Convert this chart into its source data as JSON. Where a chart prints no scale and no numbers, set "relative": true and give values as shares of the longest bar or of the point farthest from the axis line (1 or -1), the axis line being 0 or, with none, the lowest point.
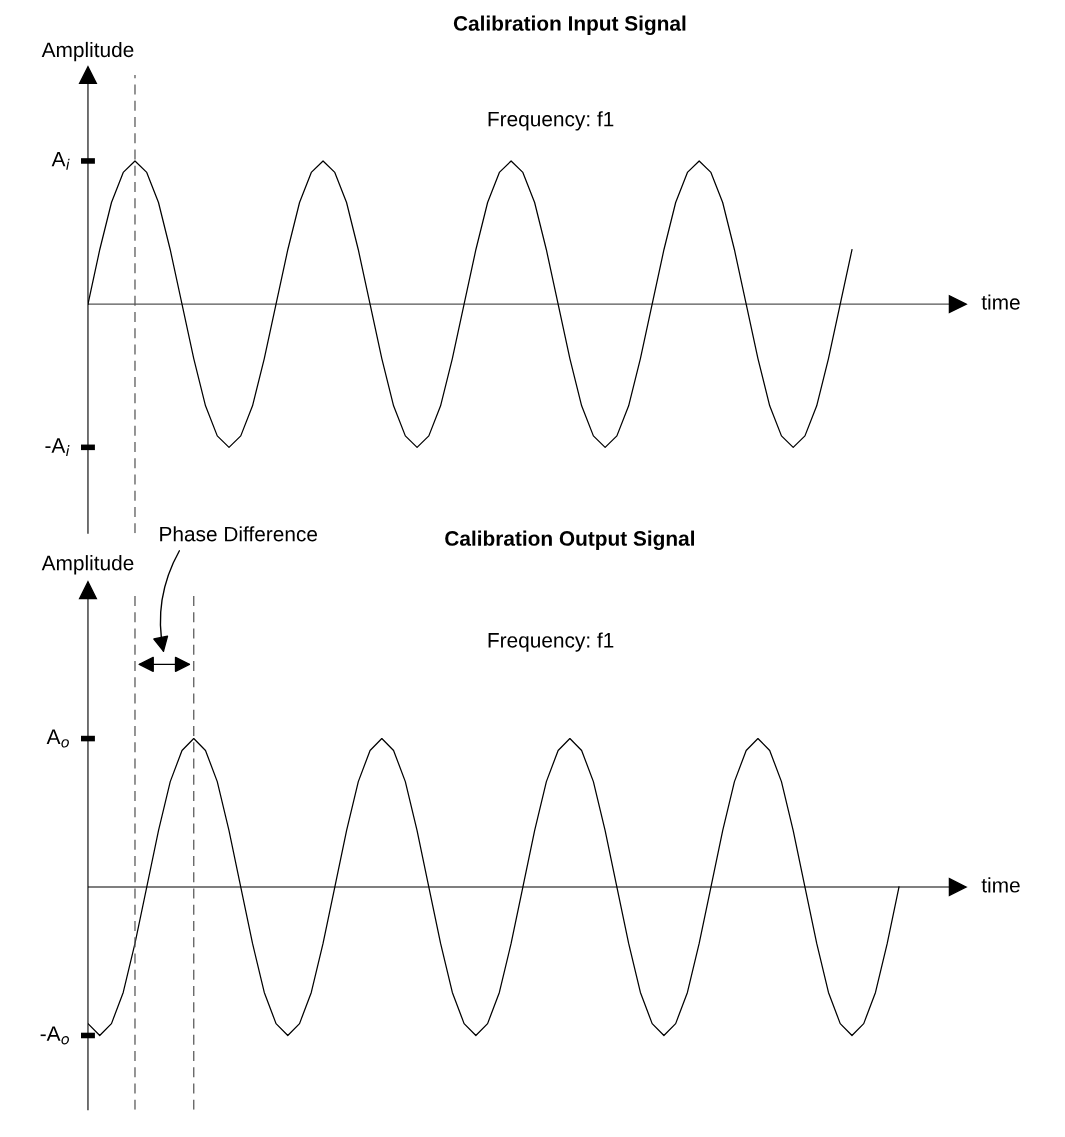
{
  "chart_data": [
    {
      "type": "line",
      "title": "Calibration Input Signal",
      "ylabel": "Amplitude",
      "xlabel": "time",
      "annotations": [
        "Frequency: f1",
        "A$_{i}$",
        "-A$_{i}$"
      ],
      "categories": [
        null,
        null,
        null,
        null,
        null,
        null,
        null,
        null,
        null,
        null,
        null,
        null,
        null,
        null,
        null,
        null,
        null,
        null,
        null,
        null,
        null,
        null,
        null,
        null,
        null,
        null,
        null,
        null,
        null,
        null,
        null,
        null,
        null,
        null,
        null,
        null,
        null,
        null,
        null,
        null,
        null,
        null,
        null,
        null,
        null,
        null,
        null,
        null,
        null,
        null,
        null,
        null,
        null,
        null,
        null,
        null,
        null,
        null,
        null,
        null,
        null,
        null,
        null,
        null,
        null,
        null
      ],
      "series": [
        {
          "color": "#000000",
          "values": [
            0,
            0.38,
            0.71,
            0.92,
            1,
            0.92,
            0.71,
            0.38,
            0,
            -0.38,
            -0.71,
            -0.92,
            -1,
            -0.92,
            -0.71,
            -0.38,
            0,
            0.38,
            0.71,
            0.92,
            1,
            0.92,
            0.71,
            0.38,
            0,
            -0.38,
            -0.71,
            -0.92,
            -1,
            -0.92,
            -0.71,
            -0.38,
            0,
            0.38,
            0.71,
            0.92,
            1,
            0.92,
            0.71,
            0.38,
            0,
            -0.38,
            -0.71,
            -0.92,
            -1,
            -0.92,
            -0.71,
            -0.38,
            0,
            0.38,
            0.71,
            0.92,
            1,
            0.92,
            0.71,
            0.38,
            0,
            -0.38,
            -0.71,
            -0.92,
            -1,
            -0.92,
            -0.71,
            -0.38,
            0,
            0.38
          ]
        }
      ],
      "relative": true
    },
    {
      "type": "line",
      "title": "Calibration Output Signal",
      "ylabel": "Amplitude",
      "xlabel": "time",
      "annotations": [
        "Frequency: f1",
        "Phase Difference",
        "A$_{o}$",
        "-A$_{o}$"
      ],
      "categories": [
        null,
        null,
        null,
        null,
        null,
        null,
        null,
        null,
        null,
        null,
        null,
        null,
        null,
        null,
        null,
        null,
        null,
        null,
        null,
        null,
        null,
        null,
        null,
        null,
        null,
        null,
        null,
        null,
        null,
        null,
        null,
        null,
        null,
        null,
        null,
        null,
        null,
        null,
        null,
        null,
        null,
        null,
        null,
        null,
        null,
        null,
        null,
        null,
        null,
        null,
        null,
        null,
        null,
        null,
        null,
        null,
        null,
        null,
        null,
        null,
        null,
        null,
        null,
        null,
        null,
        null,
        null,
        null,
        null,
        null
      ],
      "series": [
        {
          "color": "#000000",
          "values": [
            -0.92,
            -1,
            -0.92,
            -0.71,
            -0.38,
            0,
            0.38,
            0.71,
            0.92,
            1,
            0.92,
            0.71,
            0.38,
            0,
            -0.38,
            -0.71,
            -0.92,
            -1,
            -0.92,
            -0.71,
            -0.38,
            0,
            0.38,
            0.71,
            0.92,
            1,
            0.92,
            0.71,
            0.38,
            0,
            -0.38,
            -0.71,
            -0.92,
            -1,
            -0.92,
            -0.71,
            -0.38,
            0,
            0.38,
            0.71,
            0.92,
            1,
            0.92,
            0.71,
            0.38,
            0,
            -0.38,
            -0.71,
            -0.92,
            -1,
            -0.92,
            -0.71,
            -0.38,
            0,
            0.38,
            0.71,
            0.92,
            1,
            0.92,
            0.71,
            0.38,
            0,
            -0.38,
            -0.71,
            -0.92,
            -1,
            -0.92,
            -0.71,
            -0.38,
            0
          ]
        }
      ],
      "relative": true
    }
  ]
}
